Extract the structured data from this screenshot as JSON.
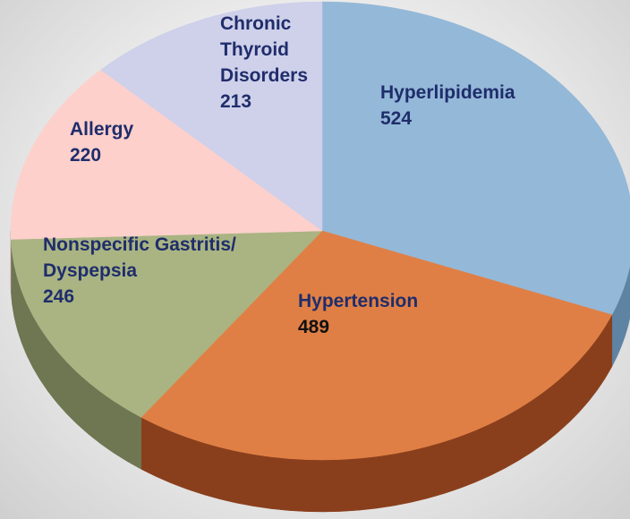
{
  "chart_data": {
    "type": "pie",
    "categories": [
      "Hyperlipidemia",
      "Hypertension",
      "Nonspecific Gastritis/ Dyspepsia",
      "Allergy",
      "Chronic Thyroid Disorders"
    ],
    "values": [
      524,
      489,
      246,
      220,
      213
    ],
    "colors": [
      "#94b8d8",
      "#e07f45",
      "#a9b482",
      "#fdd0cc",
      "#cfd0ea"
    ],
    "side_colors": [
      "#5f83a3",
      "#8a3f1c",
      "#6e7652",
      "#b08b88",
      "#8d8ea8"
    ]
  }
}
